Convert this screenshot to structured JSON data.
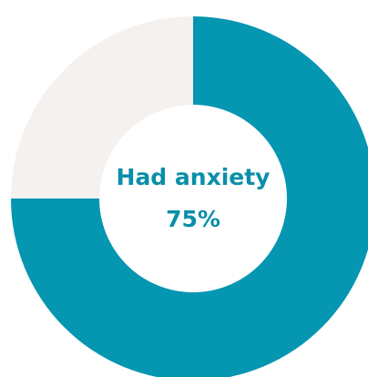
{
  "chart_data": {
    "type": "pie",
    "donut": true,
    "categories": [
      "Had anxiety",
      null
    ],
    "values": [
      75,
      25
    ],
    "value_labels": [
      "75%",
      null
    ],
    "colors": [
      "#0596b1",
      "#f4f1ef"
    ]
  }
}
